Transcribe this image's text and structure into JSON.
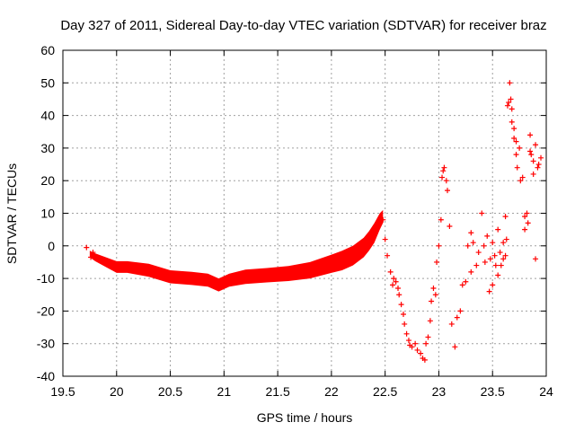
{
  "chart_data": {
    "type": "scatter",
    "title": "Day 327 of 2011, Sidereal Day-to-day VTEC variation (SDTVAR) for receiver braz",
    "xlabel": "GPS time / hours",
    "ylabel": "SDTVAR / TECUs",
    "xlim": [
      19.5,
      24
    ],
    "ylim": [
      -40,
      60
    ],
    "xticks": [
      "19.5",
      "20",
      "20.5",
      "21",
      "21.5",
      "22",
      "22.5",
      "23",
      "23.5",
      "24"
    ],
    "yticks": [
      "-40",
      "-30",
      "-20",
      "-10",
      "0",
      "10",
      "20",
      "30",
      "40",
      "50",
      "60"
    ],
    "grid": true,
    "marker": "+",
    "color": "#ff0000",
    "dense_band": {
      "description": "continuous dense run of + markers (center and half-width in TECU)",
      "x": [
        19.75,
        19.8,
        19.9,
        20.0,
        20.1,
        20.3,
        20.5,
        20.7,
        20.85,
        20.95,
        21.05,
        21.2,
        21.4,
        21.6,
        21.8,
        22.0,
        22.1,
        22.2,
        22.3,
        22.35,
        22.4,
        22.45,
        22.48
      ],
      "center": [
        -2.5,
        -3.5,
        -5.0,
        -6.5,
        -6.5,
        -7.5,
        -9.5,
        -10.0,
        -10.5,
        -12.0,
        -10.5,
        -9.5,
        -9.0,
        -8.5,
        -7.5,
        -5.5,
        -4.5,
        -3.0,
        -0.5,
        1.5,
        4.0,
        7.5,
        9.0
      ],
      "halfwidth": [
        1.0,
        1.2,
        1.5,
        1.8,
        1.8,
        2.0,
        2.0,
        2.0,
        2.0,
        2.0,
        2.0,
        2.2,
        2.2,
        2.3,
        2.5,
        2.8,
        3.0,
        3.0,
        3.0,
        3.0,
        3.0,
        2.5,
        2.0
      ]
    },
    "series": [
      {
        "name": "SDTVAR",
        "x": [
          19.72,
          19.76,
          19.78,
          22.48,
          22.5,
          22.52,
          22.55,
          22.57,
          22.58,
          22.6,
          22.62,
          22.63,
          22.65,
          22.67,
          22.68,
          22.7,
          22.72,
          22.73,
          22.75,
          22.78,
          22.8,
          22.83,
          22.85,
          22.87,
          22.88,
          22.9,
          22.92,
          22.93,
          22.95,
          22.97,
          22.98,
          23.0,
          23.02,
          23.03,
          23.04,
          23.05,
          23.07,
          23.08,
          23.1,
          23.12,
          23.15,
          23.17,
          23.2,
          23.22,
          23.25,
          23.27,
          23.3,
          23.3,
          23.32,
          23.35,
          23.37,
          23.4,
          23.42,
          23.43,
          23.45,
          23.47,
          23.48,
          23.5,
          23.5,
          23.52,
          23.53,
          23.55,
          23.55,
          23.57,
          23.58,
          23.6,
          23.6,
          23.62,
          23.62,
          23.63,
          23.64,
          23.65,
          23.66,
          23.67,
          23.68,
          23.68,
          23.7,
          23.7,
          23.72,
          23.72,
          23.73,
          23.75,
          23.76,
          23.78,
          23.8,
          23.8,
          23.82,
          23.83,
          23.85,
          23.85,
          23.86,
          23.88,
          23.88,
          23.9,
          23.9,
          23.92,
          23.93,
          23.95
        ],
        "y": [
          -0.5,
          -3.5,
          -2.0,
          8.0,
          2.0,
          -3.0,
          -8.0,
          -12.0,
          -10.0,
          -11.0,
          -13.0,
          -15.0,
          -18.0,
          -21.0,
          -24.0,
          -27.0,
          -29.0,
          -30.5,
          -31.0,
          -30.0,
          -32.0,
          -33.0,
          -34.5,
          -35.0,
          -30.0,
          -28.0,
          -23.0,
          -17.0,
          -13.0,
          -15.0,
          -5.0,
          0.0,
          8.0,
          21.0,
          23.0,
          24.0,
          20.0,
          17.0,
          6.0,
          -24.0,
          -31.0,
          -22.0,
          -20.0,
          -12.0,
          -11.0,
          0.0,
          4.0,
          -8.0,
          1.0,
          -6.0,
          -2.0,
          10.0,
          0.0,
          -5.0,
          3.0,
          -14.0,
          -4.0,
          1.0,
          -12.0,
          -3.0,
          -6.0,
          5.0,
          -9.0,
          -2.0,
          -6.0,
          1.0,
          -4.0,
          9.0,
          -3.0,
          2.0,
          43.0,
          44.0,
          50.0,
          45.0,
          42.0,
          38.0,
          36.0,
          33.0,
          28.0,
          32.0,
          24.0,
          30.0,
          20.0,
          21.0,
          9.0,
          5.0,
          10.0,
          7.0,
          34.0,
          29.0,
          28.0,
          22.0,
          26.0,
          31.0,
          -4.0,
          24.0,
          25.0,
          27.0
        ]
      }
    ]
  }
}
